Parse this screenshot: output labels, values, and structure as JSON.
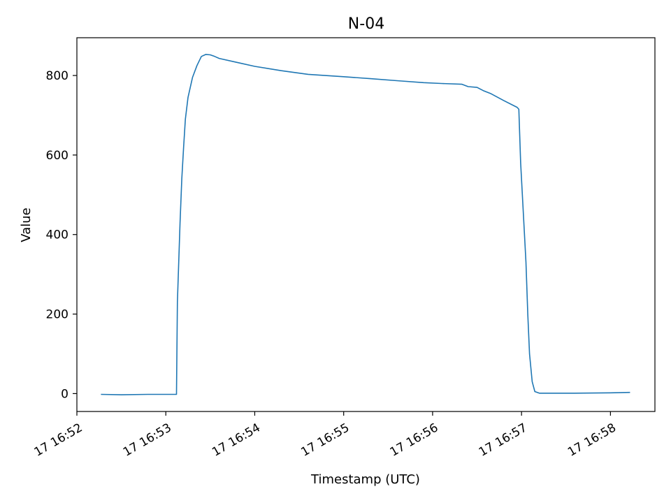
{
  "chart_data": {
    "type": "line",
    "title": "N-04",
    "xlabel": "Timestamp (UTC)",
    "ylabel": "Value",
    "x_type": "time",
    "x_unit": "minutes past 16:52 on day 17",
    "xlim": [
      0.0,
      6.5
    ],
    "ylim": [
      -45,
      895
    ],
    "grid": false,
    "x_ticks": [
      {
        "value": 0,
        "label": "17 16:52"
      },
      {
        "value": 1,
        "label": "17 16:53"
      },
      {
        "value": 2,
        "label": "17 16:54"
      },
      {
        "value": 3,
        "label": "17 16:55"
      },
      {
        "value": 4,
        "label": "17 16:56"
      },
      {
        "value": 5,
        "label": "17 16:57"
      },
      {
        "value": 6,
        "label": "17 16:58"
      }
    ],
    "y_ticks": [
      {
        "value": 0,
        "label": "0"
      },
      {
        "value": 200,
        "label": "200"
      },
      {
        "value": 400,
        "label": "400"
      },
      {
        "value": 600,
        "label": "600"
      },
      {
        "value": 800,
        "label": "800"
      }
    ],
    "series": [
      {
        "color": "#1f77b4",
        "x": [
          0.27,
          0.5,
          0.8,
          1.0,
          1.12,
          1.13,
          1.16,
          1.18,
          1.2,
          1.22,
          1.25,
          1.3,
          1.35,
          1.4,
          1.45,
          1.5,
          1.55,
          1.6,
          1.8,
          2.0,
          2.3,
          2.6,
          3.0,
          3.3,
          3.6,
          3.9,
          4.1,
          4.33,
          4.4,
          4.5,
          4.57,
          4.65,
          4.8,
          4.95,
          4.97,
          4.99,
          5.02,
          5.05,
          5.07,
          5.09,
          5.12,
          5.15,
          5.2,
          5.3,
          5.6,
          6.0,
          6.22
        ],
        "y": [
          -2,
          -3,
          -2,
          -2,
          -2,
          230,
          430,
          540,
          620,
          690,
          745,
          795,
          825,
          848,
          853,
          852,
          848,
          843,
          833,
          823,
          812,
          803,
          797,
          792,
          787,
          782,
          780,
          778,
          772,
          770,
          762,
          755,
          737,
          720,
          715,
          580,
          455,
          330,
          200,
          100,
          30,
          5,
          1,
          1,
          1,
          2,
          3
        ]
      }
    ]
  }
}
